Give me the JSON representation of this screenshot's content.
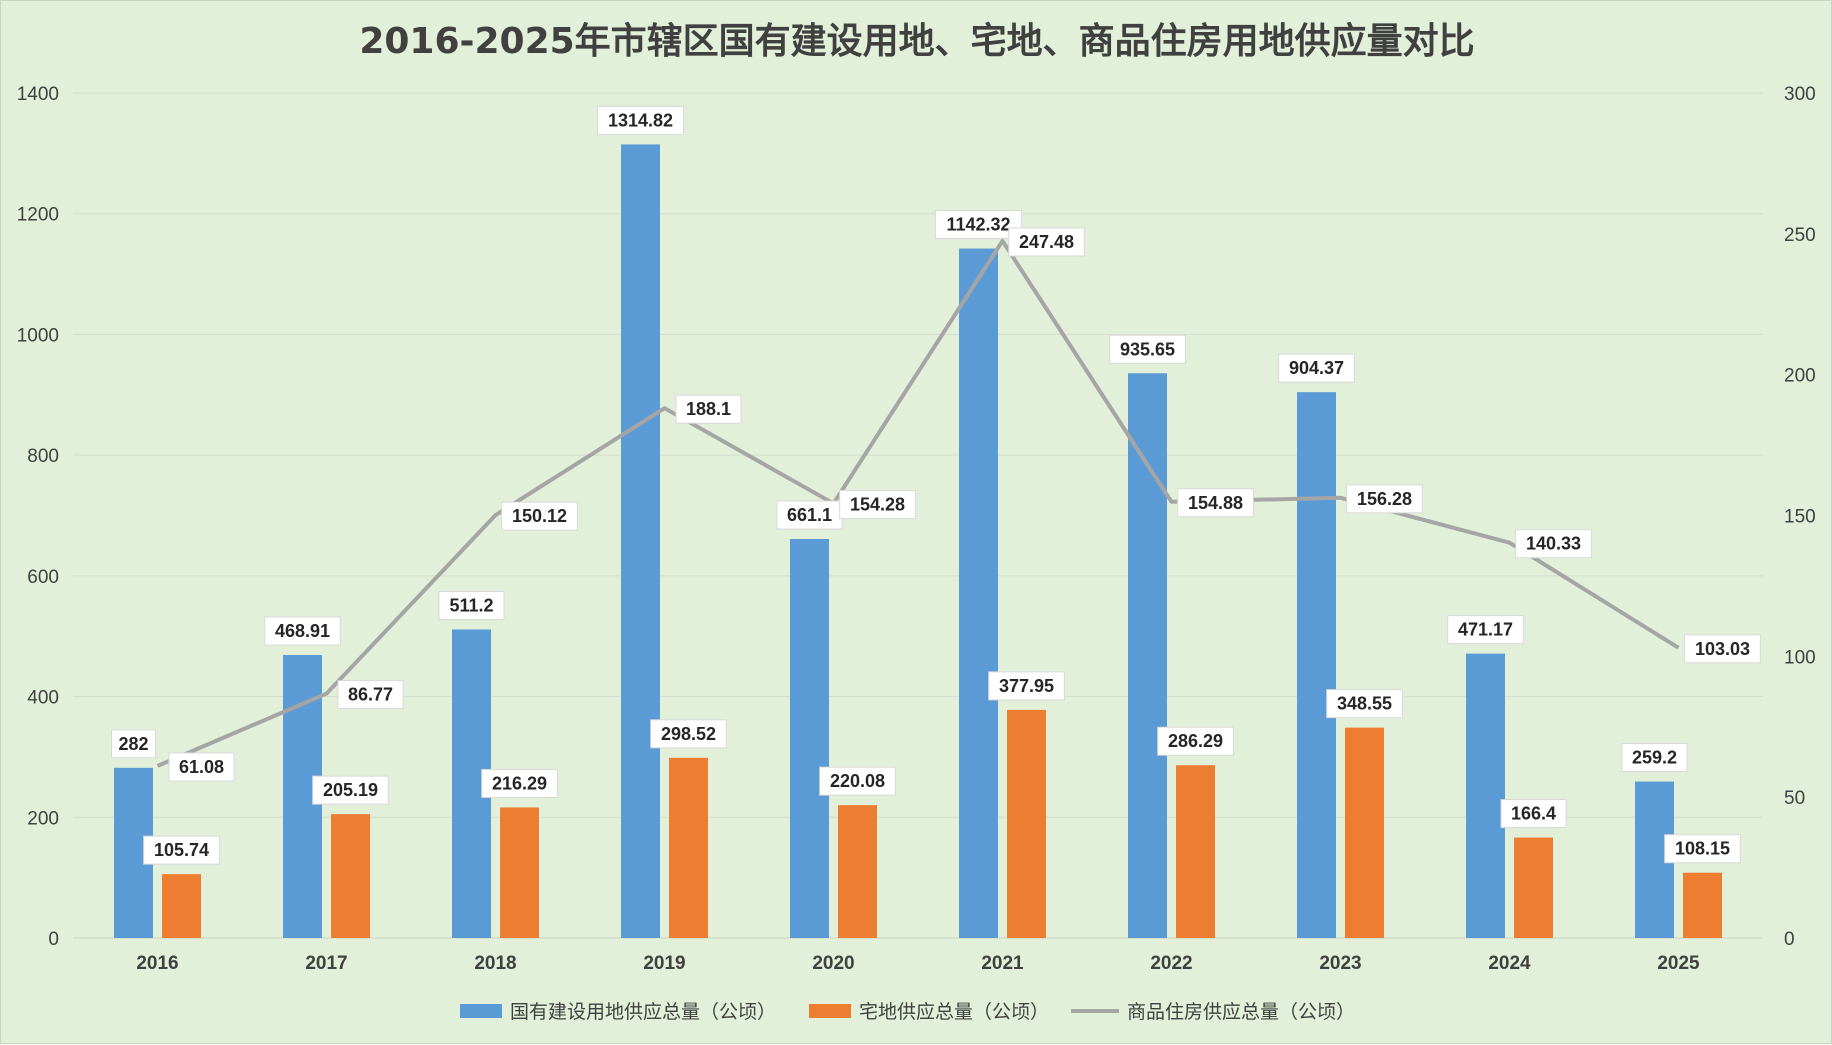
{
  "chart_data": {
    "type": "bar+line",
    "title": "2016-2025年市辖区国有建设用地、宅地、商品住房用地供应量对比",
    "categories": [
      "2016",
      "2017",
      "2018",
      "2019",
      "2020",
      "2021",
      "2022",
      "2023",
      "2024",
      "2025"
    ],
    "series": [
      {
        "name": "国有建设用地供应总量（公顷）",
        "type": "bar",
        "axis": "left",
        "color": "#5b9bd5",
        "values": [
          282,
          468.91,
          511.2,
          1314.82,
          661.1,
          1142.32,
          935.65,
          904.37,
          471.17,
          259.2
        ],
        "labels": [
          "282",
          "468.91",
          "511.2",
          "1314.82",
          "661.1",
          "1142.32",
          "935.65",
          "904.37",
          "471.17",
          "259.2"
        ]
      },
      {
        "name": "宅地供应总量（公顷）",
        "type": "bar",
        "axis": "left",
        "color": "#ed7d31",
        "values": [
          105.74,
          205.19,
          216.29,
          298.52,
          220.08,
          377.95,
          286.29,
          348.55,
          166.4,
          108.15
        ],
        "labels": [
          "105.74",
          "205.19",
          "216.29",
          "298.52",
          "220.08",
          "377.95",
          "286.29",
          "348.55",
          "166.4",
          "108.15"
        ]
      },
      {
        "name": "商品住房供应总量（公顷）",
        "type": "line",
        "axis": "right",
        "color": "#a5a5a5",
        "values": [
          61.08,
          86.77,
          150.12,
          188.1,
          154.28,
          247.48,
          154.88,
          156.28,
          140.33,
          103.03
        ],
        "labels": [
          "61.08",
          "86.77",
          "150.12",
          "188.1",
          "154.28",
          "247.48",
          "154.88",
          "156.28",
          "140.33",
          "103.03"
        ]
      }
    ],
    "y_left": {
      "ylim": [
        0,
        1400
      ],
      "ticks": [
        "0",
        "200",
        "400",
        "600",
        "800",
        "1000",
        "1200",
        "1400"
      ]
    },
    "y_right": {
      "ylim": [
        0,
        300
      ],
      "ticks": [
        "0",
        "50",
        "100",
        "150",
        "200",
        "250",
        "300"
      ]
    },
    "grid": true,
    "legend_position": "bottom",
    "background_color": "#e2efd9"
  }
}
